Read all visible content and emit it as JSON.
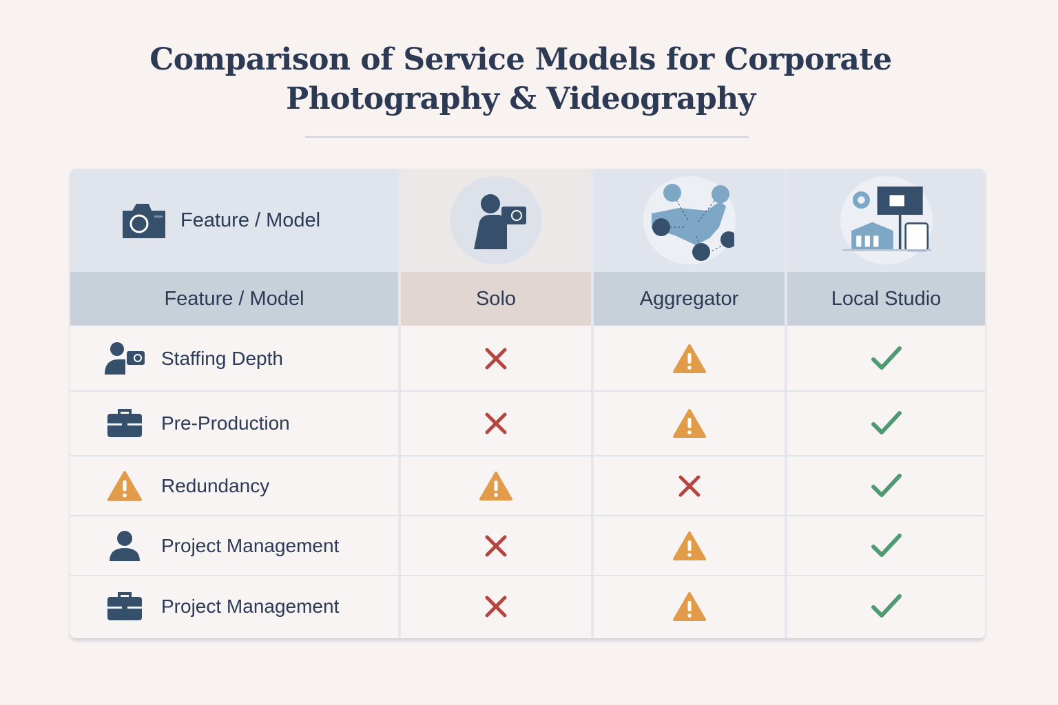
{
  "title": {
    "line1": "Comparison of Service Models for Corporate",
    "line2": "Photography & Videography"
  },
  "header": {
    "top_label": "Feature / Model",
    "columns": [
      "Feature / Model",
      "Solo",
      "Aggregator",
      "Local Studio"
    ]
  },
  "colors": {
    "cross": "#b4453f",
    "warning": "#e29b48",
    "check": "#4f9a72",
    "ink": "#364f6b"
  },
  "rows": [
    {
      "feature": "Staffing Depth",
      "icon": "photographer-icon",
      "values": [
        "cross",
        "warning",
        "check"
      ]
    },
    {
      "feature": "Pre-Production",
      "icon": "briefcase-icon",
      "values": [
        "cross",
        "warning",
        "check"
      ]
    },
    {
      "feature": "Redundancy",
      "icon": "warning-icon",
      "values": [
        "warning",
        "cross",
        "check"
      ]
    },
    {
      "feature": "Project Management",
      "icon": "person-icon",
      "values": [
        "cross",
        "warning",
        "check"
      ]
    },
    {
      "feature": "Project Management",
      "icon": "briefcase-icon",
      "values": [
        "cross",
        "warning",
        "check"
      ]
    }
  ]
}
